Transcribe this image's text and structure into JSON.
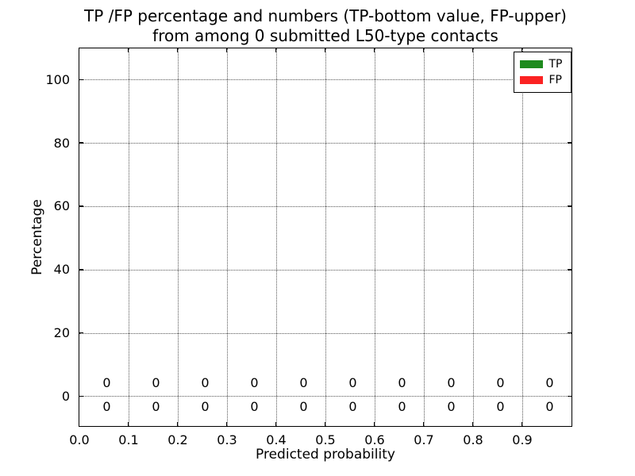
{
  "figure": {
    "title_line1": "TP /FP percentage and numbers (TP-bottom value, FP-upper)",
    "title_line2": "from among 0 submitted L50-type contacts",
    "xlabel": "Predicted probability",
    "ylabel": "Percentage"
  },
  "legend": {
    "entries": [
      {
        "label": "TP",
        "color": "#1e8b1e"
      },
      {
        "label": "FP",
        "color": "#fb2222"
      }
    ]
  },
  "colors": {
    "tp_green": "#1e8b1e",
    "fp_red": "#fb2222",
    "grid": "#555555",
    "axis": "#000000",
    "background": "#ffffff"
  },
  "chart_data": {
    "type": "bar",
    "title": "TP /FP percentage and numbers (TP-bottom value, FP-upper) from among 0 submitted L50-type contacts",
    "xlabel": "Predicted probability",
    "ylabel": "Percentage",
    "xlim": [
      0.0,
      1.0
    ],
    "ylim": [
      -9.3,
      110
    ],
    "xticks": [
      "0.0",
      "0.1",
      "0.2",
      "0.3",
      "0.4",
      "0.5",
      "0.6",
      "0.7",
      "0.8",
      "0.9"
    ],
    "yticks": [
      0,
      20,
      40,
      60,
      80,
      100
    ],
    "grid": "dotted",
    "legend_position": "upper right",
    "categories": [
      0.05,
      0.15,
      0.25,
      0.35,
      0.45,
      0.55,
      0.65,
      0.75,
      0.85,
      0.95
    ],
    "series": [
      {
        "name": "TP",
        "color": "#1e8b1e",
        "values": [
          0,
          0,
          0,
          0,
          0,
          0,
          0,
          0,
          0,
          0
        ]
      },
      {
        "name": "FP",
        "color": "#fb2222",
        "values": [
          0,
          0,
          0,
          0,
          0,
          0,
          0,
          0,
          0,
          0
        ]
      }
    ],
    "annotations": {
      "fp_row_upper": [
        "0",
        "0",
        "0",
        "0",
        "0",
        "0",
        "0",
        "0",
        "0",
        "0"
      ],
      "tp_row_lower": [
        "0",
        "0",
        "0",
        "0",
        "0",
        "0",
        "0",
        "0",
        "0",
        "0"
      ]
    }
  }
}
